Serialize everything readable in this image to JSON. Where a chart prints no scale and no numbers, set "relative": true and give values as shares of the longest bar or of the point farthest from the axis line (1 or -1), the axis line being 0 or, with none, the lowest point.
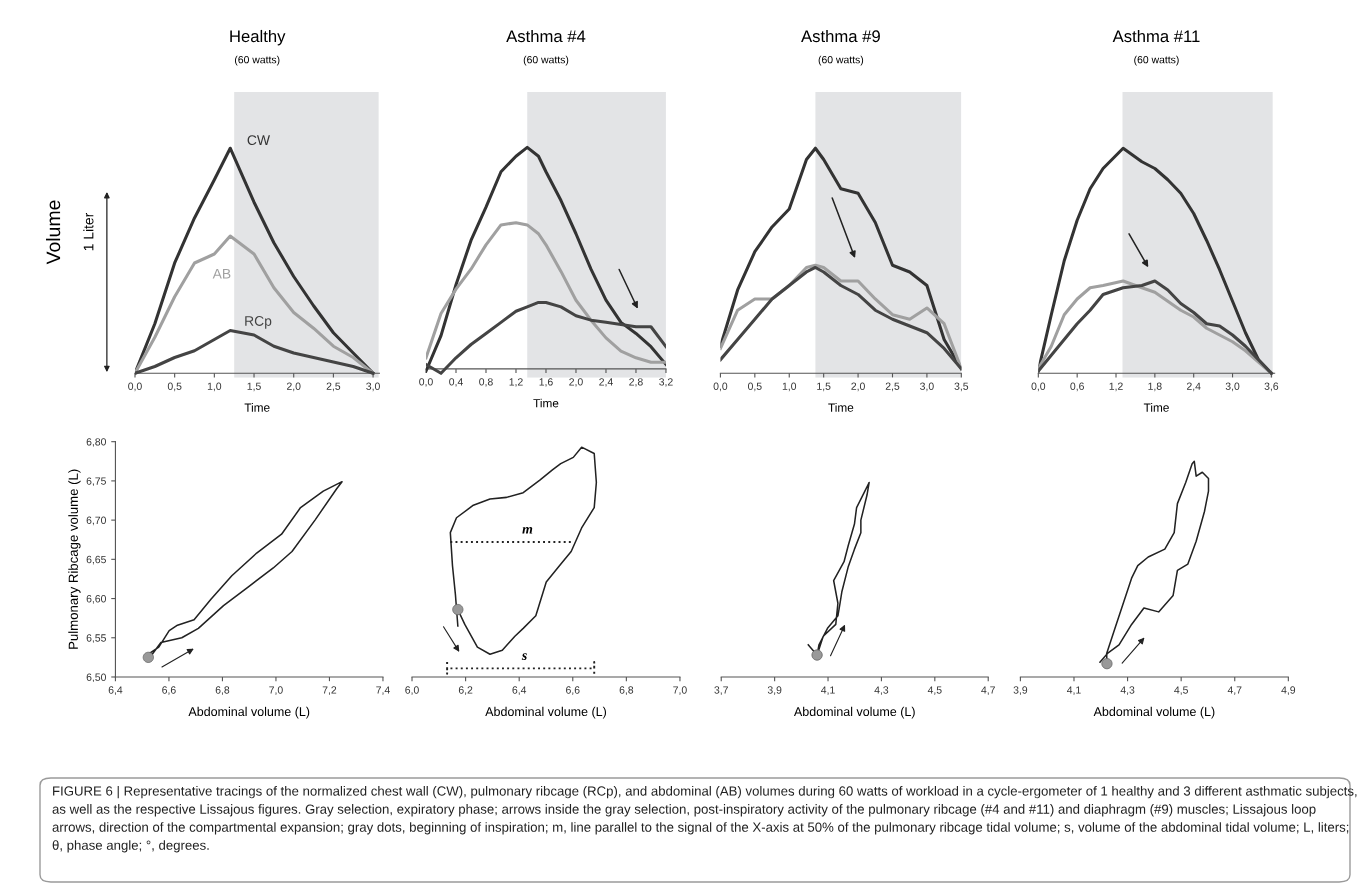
{
  "chart_data": [
    {
      "type": "line",
      "title": "Healthy",
      "subtitle": "(60 watts)",
      "xlabel": "Time",
      "ylabel": "Volume",
      "relative": true,
      "tick_labels": "x",
      "annotations": [
        "1 Liter"
      ],
      "x": [
        0,
        0.25,
        0.5,
        0.75,
        1.0,
        1.2,
        1.5,
        1.75,
        2.0,
        2.25,
        2.5,
        2.75,
        3.0
      ],
      "xlim": [
        0,
        3.08
      ],
      "xticks": [
        {
          "value": 0,
          "label": "0,0"
        },
        {
          "value": 0.5,
          "label": "0,5"
        },
        {
          "value": 1.0,
          "label": "1,0"
        },
        {
          "value": 1.5,
          "label": "1,5"
        },
        {
          "value": 2.0,
          "label": "2,0"
        },
        {
          "value": 2.5,
          "label": "2,5"
        },
        {
          "value": 3.0,
          "label": "3,0"
        }
      ],
      "bands": [
        {
          "axis": "x",
          "from": 1.25,
          "to": 3.07,
          "color": "#e3e4e6"
        }
      ],
      "series": [
        {
          "name": "CW",
          "color": "#333333",
          "values": [
            0,
            0.22,
            0.49,
            0.69,
            0.86,
            1.0,
            0.76,
            0.58,
            0.43,
            0.3,
            0.18,
            0.09,
            0
          ]
        },
        {
          "name": "AB",
          "color": "#a0a0a0",
          "values": [
            0,
            0.16,
            0.34,
            0.49,
            0.53,
            0.61,
            0.53,
            0.38,
            0.27,
            0.2,
            0.12,
            0.07,
            0
          ]
        },
        {
          "name": "RCp",
          "color": "#444444",
          "values": [
            0,
            0.03,
            0.07,
            0.1,
            0.15,
            0.19,
            0.17,
            0.12,
            0.09,
            0.07,
            0.05,
            0.03,
            0
          ]
        }
      ]
    },
    {
      "type": "line",
      "title": "Asthma #4",
      "subtitle": "(60 watts)",
      "xlabel": "Time",
      "relative": true,
      "tick_labels": "x",
      "x": [
        0,
        0.2,
        0.4,
        0.6,
        0.8,
        1.0,
        1.2,
        1.35,
        1.5,
        1.6,
        1.8,
        2.0,
        2.2,
        2.4,
        2.6,
        2.8,
        3.0,
        3.2
      ],
      "xlim": [
        0,
        3.2
      ],
      "xticks": [
        {
          "value": 0,
          "label": "0,0"
        },
        {
          "value": 0.4,
          "label": "0,4"
        },
        {
          "value": 0.8,
          "label": "0,8"
        },
        {
          "value": 1.2,
          "label": "1,2"
        },
        {
          "value": 1.6,
          "label": "1,6"
        },
        {
          "value": 2.0,
          "label": "2,0"
        },
        {
          "value": 2.4,
          "label": "2,4"
        },
        {
          "value": 2.8,
          "label": "2,8"
        },
        {
          "value": 3.2,
          "label": "3,2"
        }
      ],
      "bands": [
        {
          "axis": "x",
          "from": 1.35,
          "to": 3.2,
          "color": "#e3e4e6"
        }
      ],
      "series": [
        {
          "color": "#333333",
          "values": [
            -0.01,
            0.15,
            0.38,
            0.58,
            0.73,
            0.89,
            0.96,
            1.0,
            0.96,
            0.89,
            0.76,
            0.61,
            0.45,
            0.31,
            0.21,
            0.16,
            0.1,
            0.02
          ]
        },
        {
          "color": "#a0a0a0",
          "values": [
            0.05,
            0.25,
            0.36,
            0.45,
            0.56,
            0.65,
            0.66,
            0.65,
            0.61,
            0.56,
            0.44,
            0.31,
            0.22,
            0.14,
            0.08,
            0.05,
            0.03,
            0.03
          ]
        },
        {
          "color": "#444444",
          "values": [
            0.02,
            -0.02,
            0.05,
            0.11,
            0.16,
            0.21,
            0.26,
            0.28,
            0.3,
            0.3,
            0.28,
            0.24,
            0.22,
            0.21,
            0.2,
            0.19,
            0.19,
            0.1
          ]
        }
      ]
    },
    {
      "type": "line",
      "title": "Asthma #9",
      "subtitle": "(60 watts)",
      "xlabel": "Time",
      "relative": true,
      "tick_labels": "x",
      "x": [
        0,
        0.25,
        0.5,
        0.75,
        1.0,
        1.25,
        1.38,
        1.5,
        1.75,
        2.0,
        2.25,
        2.5,
        2.75,
        3.0,
        3.25,
        3.5
      ],
      "xlim": [
        0,
        3.5
      ],
      "xticks": [
        {
          "value": 0,
          "label": "0,0"
        },
        {
          "value": 0.5,
          "label": "0,5"
        },
        {
          "value": 1.0,
          "label": "1,0"
        },
        {
          "value": 1.5,
          "label": "1,5"
        },
        {
          "value": 2.0,
          "label": "2,0"
        },
        {
          "value": 2.5,
          "label": "2,5"
        },
        {
          "value": 3.0,
          "label": "3,0"
        },
        {
          "value": 3.5,
          "label": "3,5"
        }
      ],
      "bands": [
        {
          "axis": "x",
          "from": 1.38,
          "to": 3.5,
          "color": "#e3e4e6"
        }
      ],
      "series": [
        {
          "color": "#333333",
          "values": [
            0.12,
            0.37,
            0.54,
            0.65,
            0.73,
            0.95,
            1.0,
            0.95,
            0.82,
            0.8,
            0.67,
            0.48,
            0.45,
            0.39,
            0.15,
            0.02
          ]
        },
        {
          "color": "#a0a0a0",
          "values": [
            0.11,
            0.28,
            0.33,
            0.33,
            0.39,
            0.47,
            0.48,
            0.47,
            0.41,
            0.41,
            0.33,
            0.26,
            0.24,
            0.29,
            0.22,
            0.02
          ]
        },
        {
          "color": "#444444",
          "values": [
            0.06,
            0.15,
            0.24,
            0.33,
            0.39,
            0.45,
            0.47,
            0.45,
            0.39,
            0.35,
            0.28,
            0.24,
            0.21,
            0.18,
            0.11,
            0.02
          ]
        }
      ]
    },
    {
      "type": "line",
      "title": "Asthma #11",
      "subtitle": "(60 watts)",
      "xlabel": "Time",
      "relative": true,
      "tick_labels": "x",
      "x": [
        0,
        0.2,
        0.4,
        0.6,
        0.8,
        1.0,
        1.31,
        1.6,
        1.8,
        2.0,
        2.2,
        2.4,
        2.6,
        2.8,
        3.0,
        3.2,
        3.4,
        3.6
      ],
      "xlim": [
        0,
        3.65
      ],
      "xticks": [
        {
          "value": 0,
          "label": "0,0"
        },
        {
          "value": 0.6,
          "label": "0,6"
        },
        {
          "value": 1.2,
          "label": "1,2"
        },
        {
          "value": 1.8,
          "label": "1,8"
        },
        {
          "value": 2.4,
          "label": "2,4"
        },
        {
          "value": 3.0,
          "label": "3,0"
        },
        {
          "value": 3.6,
          "label": "3,6"
        }
      ],
      "bands": [
        {
          "axis": "x",
          "from": 1.3,
          "to": 3.62,
          "color": "#e3e4e6"
        }
      ],
      "series": [
        {
          "color": "#333333",
          "values": [
            0.01,
            0.26,
            0.5,
            0.68,
            0.82,
            0.91,
            1.0,
            0.94,
            0.91,
            0.86,
            0.8,
            0.71,
            0.59,
            0.46,
            0.32,
            0.18,
            0.06,
            0
          ]
        },
        {
          "color": "#a0a0a0",
          "values": [
            0.02,
            0.12,
            0.26,
            0.33,
            0.38,
            0.39,
            0.41,
            0.38,
            0.36,
            0.32,
            0.28,
            0.25,
            0.2,
            0.17,
            0.14,
            0.1,
            0.05,
            0
          ]
        },
        {
          "color": "#444444",
          "values": [
            0.01,
            0.08,
            0.15,
            0.22,
            0.28,
            0.35,
            0.38,
            0.39,
            0.41,
            0.37,
            0.31,
            0.27,
            0.22,
            0.21,
            0.17,
            0.12,
            0.06,
            0
          ]
        }
      ]
    },
    {
      "type": "line",
      "xlabel": "Abdominal volume (L)",
      "ylabel": "Pulmonary Ribcage volume (L)",
      "xlim": [
        6.4,
        7.4
      ],
      "xticks": [
        {
          "value": 6.4,
          "label": "6,4"
        },
        {
          "value": 6.6,
          "label": "6,6"
        },
        {
          "value": 6.8,
          "label": "6,8"
        },
        {
          "value": 7.0,
          "label": "7,0"
        },
        {
          "value": 7.2,
          "label": "7,2"
        },
        {
          "value": 7.4,
          "label": "7,4"
        }
      ],
      "ylim": [
        6.5,
        6.8
      ],
      "yticks": [
        {
          "value": 6.5,
          "label": "6,50"
        },
        {
          "value": 6.55,
          "label": "6,55"
        },
        {
          "value": 6.6,
          "label": "6,60"
        },
        {
          "value": 6.65,
          "label": "6,65"
        },
        {
          "value": 6.7,
          "label": "6,70"
        },
        {
          "value": 6.75,
          "label": "6,75"
        },
        {
          "value": 6.8,
          "label": "6,80"
        }
      ],
      "series": [
        {
          "color": "#222222",
          "x": [
            6.523,
            6.523,
            6.562,
            6.601,
            6.632,
            6.694,
            6.757,
            6.835,
            6.928,
            7.021,
            7.092,
            7.177,
            7.247,
            7.227,
            7.146,
            7.06,
            6.99,
            6.897,
            6.804,
            6.71,
            6.648,
            6.57,
            6.531
          ],
          "values": [
            6.525,
            6.529,
            6.538,
            6.559,
            6.566,
            6.573,
            6.599,
            6.629,
            6.658,
            6.682,
            6.716,
            6.737,
            6.749,
            6.74,
            6.7,
            6.66,
            6.639,
            6.615,
            6.591,
            6.562,
            6.55,
            6.544,
            6.526
          ]
        },
        {
          "type": "scatter",
          "marker": "circle",
          "color": "#999999",
          "x": [
            6.523
          ],
          "values": [
            6.525
          ]
        }
      ]
    },
    {
      "type": "line",
      "xlabel": "Abdominal volume (L)",
      "tick_labels": "x",
      "xlim": [
        6.0,
        7.0
      ],
      "xticks": [
        {
          "value": 6.0,
          "label": "6,0"
        },
        {
          "value": 6.2,
          "label": "6,2"
        },
        {
          "value": 6.4,
          "label": "6,4"
        },
        {
          "value": 6.6,
          "label": "6,6"
        },
        {
          "value": 6.8,
          "label": "6,8"
        },
        {
          "value": 7.0,
          "label": "7,0"
        }
      ],
      "ylim": [
        6.5,
        6.8
      ],
      "annotations": [
        {
          "text": "m",
          "x": 6.431,
          "y": 6.672
        },
        {
          "text": "s",
          "x": 6.42,
          "y": 6.511
        }
      ],
      "series": [
        {
          "color": "#222222",
          "x": [
            6.171,
            6.197,
            6.244,
            6.291,
            6.337,
            6.384,
            6.415,
            6.462,
            6.501,
            6.551,
            6.594,
            6.633,
            6.68,
            6.688,
            6.68,
            6.633,
            6.602,
            6.555,
            6.524,
            6.477,
            6.415,
            6.353,
            6.291,
            6.229,
            6.166,
            6.143,
            6.151,
            6.162,
            6.171
          ],
          "values": [
            6.586,
            6.567,
            6.538,
            6.529,
            6.534,
            6.552,
            6.562,
            6.578,
            6.621,
            6.642,
            6.66,
            6.69,
            6.716,
            6.748,
            6.785,
            6.793,
            6.78,
            6.772,
            6.764,
            6.751,
            6.735,
            6.729,
            6.727,
            6.719,
            6.703,
            6.684,
            6.642,
            6.605,
            6.565
          ]
        },
        {
          "color": "#222222",
          "line_style": "dotted",
          "x": [
            6.143,
            6.602
          ],
          "values": [
            6.672,
            6.672
          ]
        },
        {
          "color": "#222222",
          "line_style": "dotted",
          "x": [
            6.131,
            6.131,
            6.131,
            6.68,
            6.68,
            6.68
          ],
          "values": [
            6.519,
            6.504,
            6.511,
            6.511,
            6.519,
            6.504
          ]
        },
        {
          "type": "scatter",
          "marker": "circle",
          "color": "#999999",
          "x": [
            6.171
          ],
          "values": [
            6.586
          ]
        }
      ]
    },
    {
      "type": "line",
      "xlabel": "Abdominal volume (L)",
      "tick_labels": "x",
      "xlim": [
        3.7,
        4.7
      ],
      "xticks": [
        {
          "value": 3.7,
          "label": "3,7"
        },
        {
          "value": 3.9,
          "label": "3,9"
        },
        {
          "value": 4.1,
          "label": "4,1"
        },
        {
          "value": 4.3,
          "label": "4,3"
        },
        {
          "value": 4.5,
          "label": "4,5"
        },
        {
          "value": 4.7,
          "label": "4,7"
        }
      ],
      "ylim": [
        6.5,
        6.8
      ],
      "series": [
        {
          "color": "#222222",
          "x": [
            4.059,
            4.082,
            4.129,
            4.137,
            4.121,
            4.16,
            4.176,
            4.199,
            4.207,
            4.238,
            4.254,
            4.246,
            4.223,
            4.223,
            4.199,
            4.176,
            4.152,
            4.145,
            4.137,
            4.098,
            4.066,
            4.059,
            4.036,
            4.026
          ],
          "values": [
            6.528,
            6.552,
            6.567,
            6.594,
            6.623,
            6.647,
            6.668,
            6.695,
            6.716,
            6.737,
            6.748,
            6.732,
            6.7,
            6.684,
            6.663,
            6.641,
            6.609,
            6.594,
            6.578,
            6.562,
            6.541,
            6.528,
            6.537,
            6.541
          ]
        },
        {
          "type": "scatter",
          "marker": "circle",
          "color": "#999999",
          "x": [
            4.059
          ],
          "values": [
            6.528
          ]
        }
      ]
    },
    {
      "type": "line",
      "xlabel": "Abdominal volume (L)",
      "tick_labels": "x",
      "xlim": [
        3.9,
        4.9
      ],
      "xticks": [
        {
          "value": 3.9,
          "label": "3,9"
        },
        {
          "value": 4.1,
          "label": "4,1"
        },
        {
          "value": 4.3,
          "label": "4,3"
        },
        {
          "value": 4.5,
          "label": "4,5"
        },
        {
          "value": 4.7,
          "label": "4,7"
        },
        {
          "value": 4.9,
          "label": "4,9"
        }
      ],
      "ylim": [
        6.5,
        6.8
      ],
      "annotations": [
        "FIGURE 6 | Representative tracings of the normalized chest wall (CW), pulmonary ribcage (RCp), and abdominal (AB) volumes during 60 watts of workload in a cycle-ergometer of 1 healthy and 3 different asthmatic subjects, as well as the respective Lissajous figures. Gray selection, expiratory phase; arrows inside the gray selection, post-inspiratory activity of the pulmonary ribcage (#4 and #11) and diaphragm (#9) muscles; Lissajous loop arrows, direction of the compartmental expansion; gray dots, beginning of inspiration; m, line parallel to the signal of the X-axis at 50% of the pulmonary ribcage tidal volume; s, volume of the abdominal tidal volume; L, liters; θ, phase angle; °, degrees."
      ],
      "series": [
        {
          "color": "#222222",
          "x": [
            4.223,
            4.222,
            4.253,
            4.284,
            4.315,
            4.338,
            4.377,
            4.439,
            4.474,
            4.486,
            4.517,
            4.541,
            4.549,
            4.556,
            4.579,
            4.602,
            4.602,
            4.587,
            4.556,
            4.525,
            4.486,
            4.47,
            4.416,
            4.361,
            4.315,
            4.268,
            4.225,
            4.197
          ],
          "values": [
            6.517,
            6.53,
            6.562,
            6.594,
            6.626,
            6.642,
            6.653,
            6.663,
            6.684,
            6.721,
            6.748,
            6.772,
            6.775,
            6.756,
            6.761,
            6.753,
            6.737,
            6.711,
            6.673,
            6.644,
            6.636,
            6.604,
            6.583,
            6.588,
            6.567,
            6.541,
            6.53,
            6.519
          ]
        },
        {
          "type": "scatter",
          "marker": "circle",
          "color": "#999999",
          "x": [
            4.223
          ],
          "values": [
            6.517
          ]
        }
      ]
    }
  ]
}
